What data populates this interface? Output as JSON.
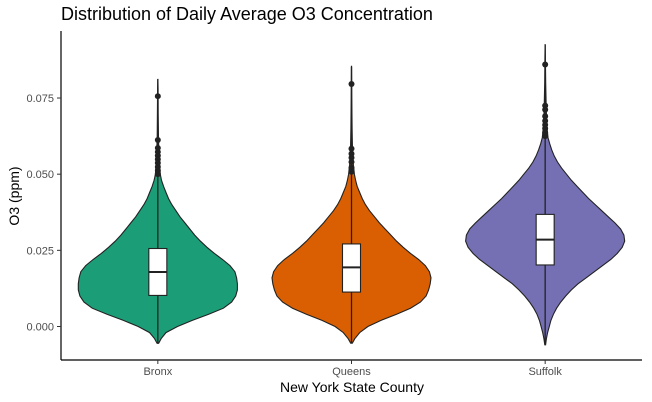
{
  "chart_data": {
    "type": "violin",
    "title": "Distribution of Daily Average O3 Concentration",
    "xlabel": "New York State County",
    "ylabel": "O3 (ppm)",
    "categories": [
      "Bronx",
      "Queens",
      "Suffolk"
    ],
    "colors": [
      "#1b9e77",
      "#d95f02",
      "#7570b3"
    ],
    "ylim": [
      -0.011,
      0.097
    ],
    "y_ticks": [
      0.0,
      0.025,
      0.05,
      0.075
    ],
    "y_tick_labels": [
      "0.000",
      "0.025",
      "0.050",
      "0.075"
    ],
    "grid": false,
    "legend": "none",
    "series": [
      {
        "q1": 0.0102,
        "median": 0.0179,
        "q3": 0.0256,
        "whisker_low": -0.0057,
        "whisker_high": 0.0488,
        "min": -0.0057,
        "max": 0.0813,
        "outliers": [
          0.05,
          0.0512,
          0.0524,
          0.0537,
          0.0549,
          0.0561,
          0.0573,
          0.0586,
          0.0612,
          0.0756
        ],
        "density_profile": [
          [
            -0.0055,
            0.01
          ],
          [
            -0.004,
            0.04
          ],
          [
            -0.002,
            0.1
          ],
          [
            0.0,
            0.24
          ],
          [
            0.002,
            0.42
          ],
          [
            0.004,
            0.62
          ],
          [
            0.006,
            0.8
          ],
          [
            0.008,
            0.9
          ],
          [
            0.01,
            0.95
          ],
          [
            0.012,
            0.97
          ],
          [
            0.014,
            0.97
          ],
          [
            0.016,
            0.96
          ],
          [
            0.018,
            0.94
          ],
          [
            0.02,
            0.88
          ],
          [
            0.022,
            0.79
          ],
          [
            0.024,
            0.69
          ],
          [
            0.026,
            0.6
          ],
          [
            0.028,
            0.52
          ],
          [
            0.03,
            0.45
          ],
          [
            0.032,
            0.39
          ],
          [
            0.034,
            0.33
          ],
          [
            0.036,
            0.27
          ],
          [
            0.038,
            0.22
          ],
          [
            0.04,
            0.17
          ],
          [
            0.042,
            0.13
          ],
          [
            0.044,
            0.1
          ],
          [
            0.046,
            0.07
          ],
          [
            0.048,
            0.045
          ],
          [
            0.05,
            0.03
          ],
          [
            0.054,
            0.02
          ],
          [
            0.058,
            0.012
          ],
          [
            0.062,
            0.008
          ],
          [
            0.07,
            0.005
          ],
          [
            0.078,
            0.003
          ],
          [
            0.081,
            0.001
          ]
        ]
      },
      {
        "q1": 0.0113,
        "median": 0.0194,
        "q3": 0.0271,
        "whisker_low": -0.0056,
        "whisker_high": 0.0496,
        "min": -0.0056,
        "max": 0.0856,
        "outliers": [
          0.0508,
          0.0521,
          0.054,
          0.0554,
          0.0567,
          0.0584,
          0.0796
        ],
        "density_profile": [
          [
            -0.0055,
            0.01
          ],
          [
            -0.004,
            0.04
          ],
          [
            -0.002,
            0.1
          ],
          [
            0.0,
            0.2
          ],
          [
            0.002,
            0.36
          ],
          [
            0.004,
            0.55
          ],
          [
            0.006,
            0.72
          ],
          [
            0.008,
            0.84
          ],
          [
            0.01,
            0.91
          ],
          [
            0.012,
            0.94
          ],
          [
            0.014,
            0.96
          ],
          [
            0.016,
            0.97
          ],
          [
            0.018,
            0.95
          ],
          [
            0.02,
            0.9
          ],
          [
            0.022,
            0.82
          ],
          [
            0.024,
            0.72
          ],
          [
            0.026,
            0.63
          ],
          [
            0.028,
            0.55
          ],
          [
            0.03,
            0.48
          ],
          [
            0.032,
            0.41
          ],
          [
            0.034,
            0.34
          ],
          [
            0.036,
            0.28
          ],
          [
            0.038,
            0.22
          ],
          [
            0.04,
            0.17
          ],
          [
            0.042,
            0.13
          ],
          [
            0.044,
            0.1
          ],
          [
            0.046,
            0.07
          ],
          [
            0.048,
            0.05
          ],
          [
            0.05,
            0.035
          ],
          [
            0.054,
            0.02
          ],
          [
            0.058,
            0.012
          ],
          [
            0.065,
            0.007
          ],
          [
            0.075,
            0.004
          ],
          [
            0.085,
            0.001
          ]
        ]
      },
      {
        "q1": 0.0202,
        "median": 0.0285,
        "q3": 0.0368,
        "whisker_low": -0.0058,
        "whisker_high": 0.0612,
        "min": -0.0058,
        "max": 0.0925,
        "outliers": [
          0.0625,
          0.0637,
          0.065,
          0.0662,
          0.0675,
          0.069,
          0.0712,
          0.0725,
          0.086
        ],
        "density_profile": [
          [
            -0.006,
            0.005
          ],
          [
            -0.004,
            0.015
          ],
          [
            -0.002,
            0.03
          ],
          [
            0.0,
            0.05
          ],
          [
            0.002,
            0.07
          ],
          [
            0.004,
            0.1
          ],
          [
            0.006,
            0.14
          ],
          [
            0.008,
            0.19
          ],
          [
            0.01,
            0.25
          ],
          [
            0.012,
            0.32
          ],
          [
            0.014,
            0.4
          ],
          [
            0.016,
            0.5
          ],
          [
            0.018,
            0.6
          ],
          [
            0.02,
            0.7
          ],
          [
            0.022,
            0.8
          ],
          [
            0.024,
            0.88
          ],
          [
            0.026,
            0.94
          ],
          [
            0.028,
            0.97
          ],
          [
            0.03,
            0.96
          ],
          [
            0.032,
            0.92
          ],
          [
            0.034,
            0.85
          ],
          [
            0.036,
            0.77
          ],
          [
            0.038,
            0.69
          ],
          [
            0.04,
            0.61
          ],
          [
            0.042,
            0.53
          ],
          [
            0.044,
            0.46
          ],
          [
            0.046,
            0.39
          ],
          [
            0.048,
            0.32
          ],
          [
            0.05,
            0.26
          ],
          [
            0.052,
            0.2
          ],
          [
            0.054,
            0.15
          ],
          [
            0.056,
            0.11
          ],
          [
            0.058,
            0.08
          ],
          [
            0.06,
            0.055
          ],
          [
            0.062,
            0.035
          ],
          [
            0.066,
            0.02
          ],
          [
            0.072,
            0.012
          ],
          [
            0.08,
            0.006
          ],
          [
            0.088,
            0.003
          ],
          [
            0.0925,
            0.001
          ]
        ]
      }
    ]
  }
}
